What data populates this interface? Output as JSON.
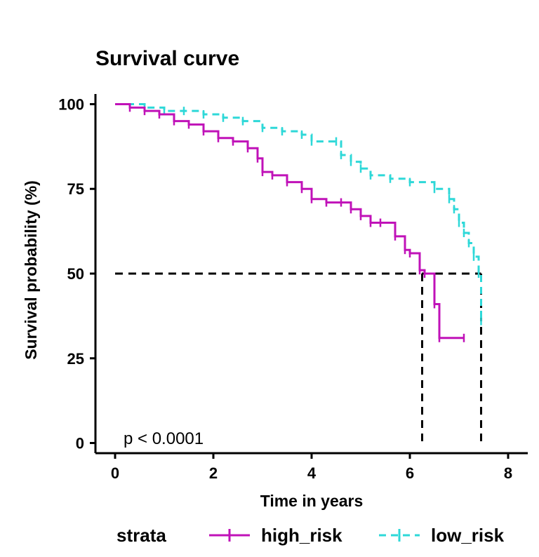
{
  "chart_data": {
    "type": "line",
    "subtype": "kaplan-meier step",
    "title": "Survival curve",
    "xlabel": "Time in years",
    "ylabel": "Survival probability (%)",
    "xlim": [
      -0.4,
      8.4
    ],
    "ylim": [
      -3,
      103
    ],
    "x_ticks": [
      0,
      2,
      4,
      6,
      8
    ],
    "y_ticks": [
      0,
      25,
      50,
      75,
      100
    ],
    "grid": false,
    "annotation": "p < 0.0001",
    "median_line_y": 50,
    "legend": {
      "title": "strata",
      "placement": "bottom"
    },
    "series": [
      {
        "name": "high_risk",
        "color": "#c012b8",
        "line_style": "solid",
        "x": [
          0,
          0.3,
          0.6,
          0.9,
          1.2,
          1.5,
          1.8,
          2.1,
          2.4,
          2.7,
          2.9,
          3.0,
          3.2,
          3.5,
          3.8,
          4.0,
          4.3,
          4.6,
          4.8,
          5.0,
          5.2,
          5.4,
          5.7,
          5.9,
          6.0,
          6.2,
          6.3,
          6.5,
          6.6,
          7.1
        ],
        "y": [
          100,
          99,
          98,
          97,
          95,
          94,
          92,
          90,
          89,
          87,
          84,
          80,
          79,
          77,
          75,
          72,
          71,
          71,
          69,
          67,
          65,
          65,
          61,
          57,
          56,
          51,
          50,
          41,
          31,
          31
        ]
      },
      {
        "name": "low_risk",
        "color": "#2ed8d8",
        "line_style": "dashed",
        "x": [
          0,
          0.6,
          1.0,
          1.4,
          1.8,
          2.2,
          2.6,
          3.0,
          3.4,
          3.8,
          4.0,
          4.5,
          4.6,
          4.8,
          5.0,
          5.2,
          5.6,
          6.0,
          6.5,
          6.8,
          6.9,
          7.0,
          7.1,
          7.2,
          7.3,
          7.4,
          7.45
        ],
        "y": [
          100,
          99,
          98,
          98,
          97,
          96,
          95,
          93,
          92,
          91,
          89,
          89,
          85,
          83,
          81,
          79,
          78,
          77,
          75,
          72,
          69,
          65,
          62,
          59,
          55,
          50,
          36
        ]
      }
    ],
    "medians": [
      {
        "series": "high_risk",
        "x": 6.25
      },
      {
        "series": "low_risk",
        "x": 7.45
      }
    ]
  }
}
